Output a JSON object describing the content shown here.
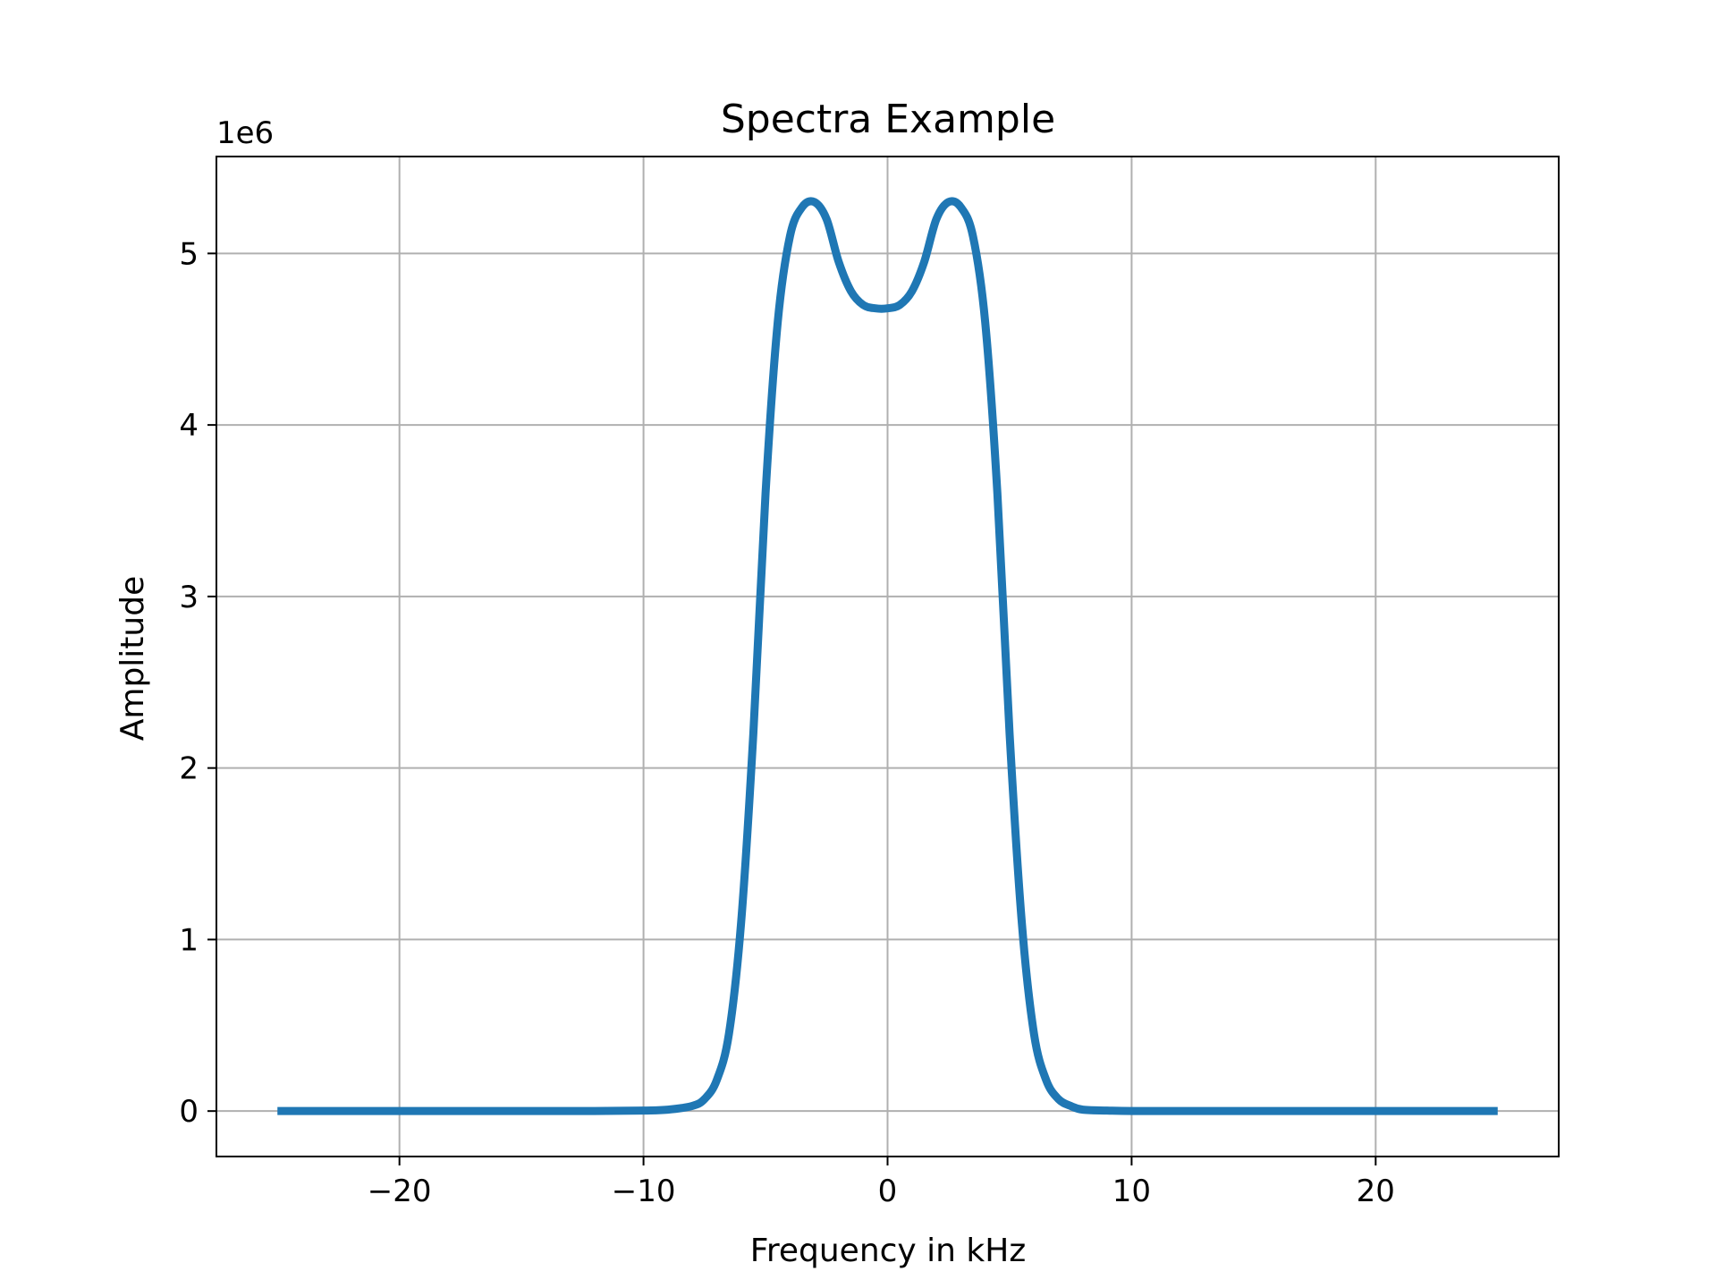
{
  "chart_data": {
    "type": "line",
    "title": "Spectra Example",
    "xlabel": "Frequency in kHz",
    "ylabel": "Amplitude",
    "y_offset_label": "1e6",
    "y_multiplier": 1000000,
    "xlim": [
      -27.5,
      27.5
    ],
    "ylim": [
      -0.265,
      5.565
    ],
    "x_ticks": [
      -20,
      -10,
      0,
      10,
      20
    ],
    "x_tick_labels": [
      "−20",
      "−10",
      "0",
      "10",
      "20"
    ],
    "y_ticks": [
      0,
      1,
      2,
      3,
      4,
      5
    ],
    "y_tick_labels": [
      "0",
      "1",
      "2",
      "3",
      "4",
      "5"
    ],
    "grid": true,
    "series": [
      {
        "color": "#1f77b4",
        "x": [
          -25,
          -20,
          -15,
          -12,
          -10,
          -9,
          -8,
          -7.5,
          -7,
          -6.5,
          -6,
          -5.5,
          -5,
          -4.5,
          -4,
          -3.5,
          -3,
          -2.5,
          -2,
          -1.5,
          -1,
          -0.5,
          0,
          0.5,
          1,
          1.5,
          2,
          2.5,
          3,
          3.5,
          4,
          4.5,
          5,
          5.5,
          6,
          6.5,
          7,
          7.5,
          8,
          9,
          10,
          12,
          15,
          20,
          25
        ],
        "y": [
          0,
          0,
          0,
          0,
          0.003,
          0.008,
          0.03,
          0.07,
          0.18,
          0.45,
          1.1,
          2.2,
          3.6,
          4.6,
          5.1,
          5.27,
          5.3,
          5.2,
          4.95,
          4.78,
          4.7,
          4.68,
          4.68,
          4.7,
          4.78,
          4.95,
          5.2,
          5.3,
          5.27,
          5.1,
          4.6,
          3.6,
          2.2,
          1.1,
          0.45,
          0.18,
          0.07,
          0.03,
          0.008,
          0.003,
          0,
          0,
          0,
          0,
          0
        ]
      }
    ]
  }
}
